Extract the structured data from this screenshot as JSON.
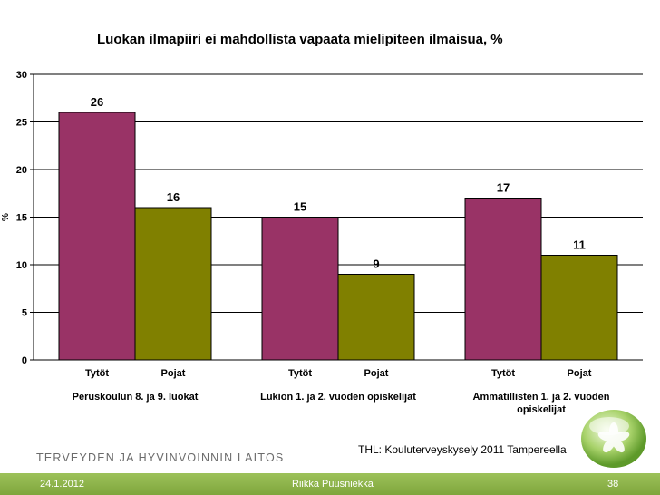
{
  "chart_data": {
    "type": "bar",
    "title": "Luokan ilmapiiri ei mahdollista vapaata mielipiteen ilmaisua, %",
    "ylabel": "%",
    "ylim": [
      0,
      30
    ],
    "yticks": [
      0,
      5,
      10,
      15,
      20,
      25,
      30
    ],
    "grid": true,
    "groups": [
      {
        "label": "Peruskoulun 8. ja 9. luokat",
        "bars": [
          {
            "category": "Tytöt",
            "value": 26,
            "color": "#993366"
          },
          {
            "category": "Pojat",
            "value": 16,
            "color": "#808000"
          }
        ]
      },
      {
        "label": "Lukion 1. ja 2. vuoden opiskelijat",
        "bars": [
          {
            "category": "Tytöt",
            "value": 15,
            "color": "#993366"
          },
          {
            "category": "Pojat",
            "value": 9,
            "color": "#808000"
          }
        ]
      },
      {
        "label": "Ammatillisten 1. ja 2. vuoden opiskelijat",
        "bars": [
          {
            "category": "Tytöt",
            "value": 17,
            "color": "#993366"
          },
          {
            "category": "Pojat",
            "value": 11,
            "color": "#808000"
          }
        ]
      }
    ]
  },
  "source_note": "THL: Kouluterveyskysely 2011 Tampereella",
  "organization": "TERVEYDEN JA HYVINVOINNIN LAITOS",
  "footer": {
    "date": "24.1.2012",
    "author": "Riikka Puusniekka",
    "page": "38"
  }
}
